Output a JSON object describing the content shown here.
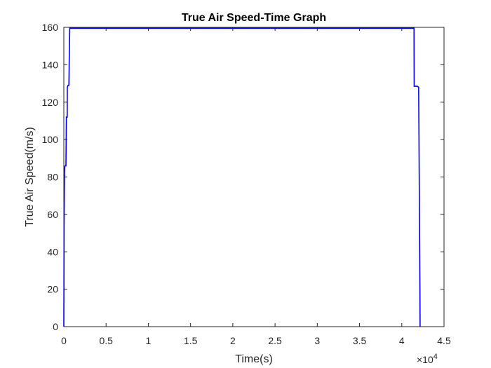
{
  "chart_data": {
    "type": "line",
    "title": "True Air Speed-Time Graph",
    "xlabel": "Time(s)",
    "ylabel": "True Air Speed(m/s)",
    "x_multiplier": {
      "base": "×10",
      "exponent": "4"
    },
    "xlim": [
      0,
      45000
    ],
    "ylim": [
      0,
      160
    ],
    "x_ticks": [
      0,
      5000,
      10000,
      15000,
      20000,
      25000,
      30000,
      35000,
      40000,
      45000
    ],
    "x_tick_labels": [
      "0",
      "0.5",
      "1",
      "1.5",
      "2",
      "2.5",
      "3",
      "3.5",
      "4",
      "4.5"
    ],
    "y_ticks": [
      0,
      20,
      40,
      60,
      80,
      100,
      120,
      140,
      160
    ],
    "y_tick_labels": [
      "0",
      "20",
      "40",
      "60",
      "80",
      "100",
      "120",
      "140",
      "160"
    ],
    "grid": false,
    "box": true,
    "series": [
      {
        "color": "#0000ff",
        "x": [
          0,
          30,
          80,
          100,
          150,
          200,
          250,
          280,
          300,
          350,
          400,
          410,
          500,
          560,
          600,
          650,
          700,
          2000,
          10000,
          20000,
          30000,
          40000,
          41450,
          41470,
          41600,
          41800,
          41850,
          42000,
          42150,
          42170
        ],
        "y": [
          0,
          55,
          82,
          85,
          86,
          86,
          86,
          100,
          112,
          112,
          112,
          128,
          129,
          129,
          129,
          145,
          159.5,
          159.5,
          159.5,
          159.5,
          159.5,
          159.5,
          159.5,
          128.5,
          128.5,
          128.5,
          128.5,
          128,
          20,
          0
        ]
      }
    ]
  }
}
